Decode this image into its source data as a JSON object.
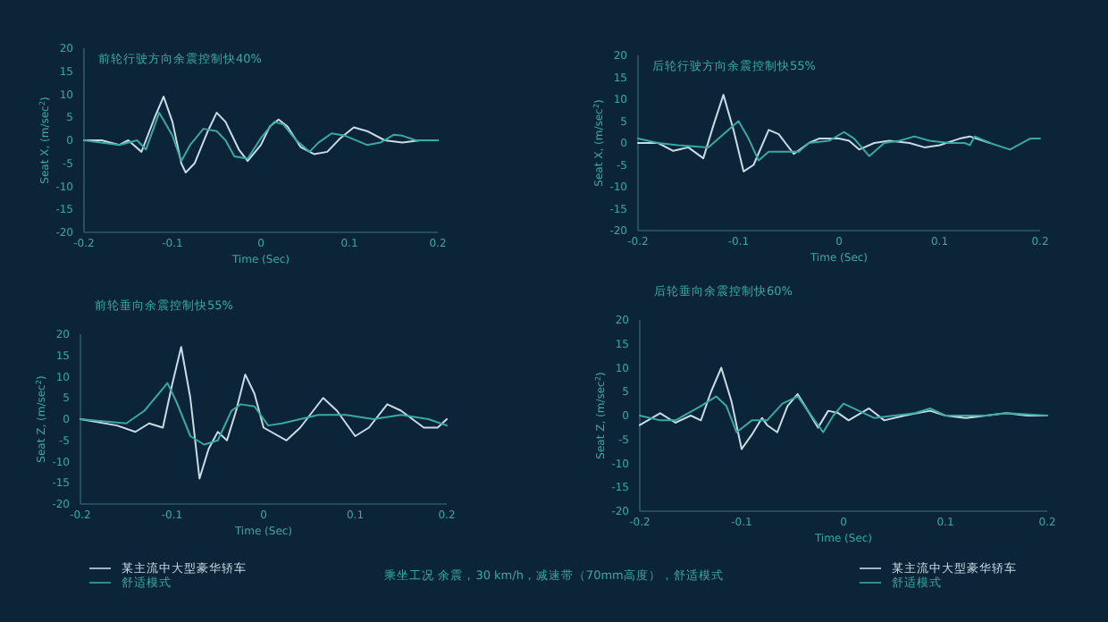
{
  "chart_data": [
    {
      "type": "line",
      "title": "前轮行驶方向余震控制快40%",
      "xlabel": "Time (Sec)",
      "ylabel": "Seat X, (m/sec$^{2}$)",
      "xlim": [
        -0.2,
        0.2
      ],
      "ylim": [
        -20,
        20
      ],
      "xticks": [
        -0.2,
        -0.1,
        0,
        0.1,
        0.2
      ],
      "yticks": [
        -20,
        -15,
        -10,
        -5,
        0,
        5,
        10,
        15,
        20
      ],
      "grid": false,
      "legend": false,
      "marker": "none",
      "line_style": "solid",
      "series": [
        {
          "color": "#c8dce6",
          "x": [
            -0.2,
            -0.18,
            -0.16,
            -0.15,
            -0.135,
            -0.12,
            -0.11,
            -0.1,
            -0.09,
            -0.085,
            -0.075,
            -0.06,
            -0.05,
            -0.04,
            -0.025,
            -0.015,
            0,
            0.01,
            0.02,
            0.03,
            0.045,
            0.06,
            0.075,
            0.09,
            0.105,
            0.12,
            0.14,
            0.16,
            0.18,
            0.2
          ],
          "values": [
            0,
            0,
            -1,
            0,
            -2.5,
            5,
            9.5,
            4,
            -5,
            -7,
            -5,
            2,
            6,
            4,
            -2,
            -4.5,
            -1,
            3,
            4.5,
            3,
            -1.5,
            -3,
            -2.5,
            0.5,
            2.8,
            2,
            0,
            -0.5,
            0,
            0
          ]
        },
        {
          "color": "#3aa9a0",
          "x": [
            -0.2,
            -0.16,
            -0.14,
            -0.13,
            -0.115,
            -0.1,
            -0.09,
            -0.08,
            -0.065,
            -0.05,
            -0.04,
            -0.03,
            -0.015,
            0,
            0.015,
            0.025,
            0.04,
            0.055,
            0.065,
            0.08,
            0.095,
            0.12,
            0.135,
            0.15,
            0.16,
            0.175,
            0.2
          ],
          "values": [
            0,
            -1,
            0,
            -2,
            6,
            1,
            -4.5,
            -1,
            2.5,
            2,
            0,
            -3.5,
            -4,
            0.5,
            4,
            3.5,
            0,
            -2.5,
            -0.5,
            1.5,
            1,
            -1,
            -0.5,
            1.2,
            1,
            0,
            0
          ]
        }
      ]
    },
    {
      "type": "line",
      "title": "后轮行驶方向余震控制快55%",
      "xlabel": "Time (Sec)",
      "ylabel": "Seat X, (m/sec$^{2}$)",
      "xlim": [
        -0.2,
        0.2
      ],
      "ylim": [
        -20,
        20
      ],
      "xticks": [
        -0.2,
        -0.1,
        0,
        0.1,
        0.2
      ],
      "yticks": [
        -20,
        -15,
        -10,
        -5,
        0,
        5,
        10,
        15,
        20
      ],
      "grid": false,
      "legend": false,
      "marker": "none",
      "line_style": "solid",
      "series": [
        {
          "color": "#c8dce6",
          "x": [
            -0.2,
            -0.18,
            -0.165,
            -0.15,
            -0.135,
            -0.125,
            -0.115,
            -0.105,
            -0.095,
            -0.085,
            -0.07,
            -0.06,
            -0.045,
            -0.03,
            -0.02,
            0,
            0.01,
            0.02,
            0.035,
            0.05,
            0.07,
            0.085,
            0.1,
            0.12,
            0.13,
            0.15
          ],
          "values": [
            0,
            0,
            -1.8,
            -1,
            -3.5,
            4,
            11,
            3,
            -6.5,
            -5,
            3,
            2,
            -2.5,
            0,
            1,
            1,
            0.5,
            -1.5,
            0,
            0.5,
            0,
            -1,
            -0.5,
            1,
            1.5,
            0
          ]
        },
        {
          "color": "#3aa9a0",
          "x": [
            -0.2,
            -0.18,
            -0.16,
            -0.13,
            -0.115,
            -0.1,
            -0.09,
            -0.08,
            -0.07,
            -0.04,
            -0.03,
            -0.01,
            0.005,
            0.015,
            0.03,
            0.045,
            0.06,
            0.075,
            0.09,
            0.11,
            0.125,
            0.13,
            0.135,
            0.15,
            0.17,
            0.19,
            0.2
          ],
          "values": [
            1,
            0,
            -0.5,
            -1,
            2,
            5,
            1,
            -4,
            -2,
            -2,
            0,
            0.5,
            2.5,
            1,
            -3,
            0,
            0.5,
            1.5,
            0.5,
            0,
            0,
            -0.5,
            1.5,
            0,
            -1.5,
            1,
            1
          ]
        }
      ]
    },
    {
      "type": "line",
      "title": "前轮垂向余震控制快55%",
      "xlabel": "Time (Sec)",
      "ylabel": "Seat Z, (m/sec$^{2}$)",
      "xlim": [
        -0.2,
        0.2
      ],
      "ylim": [
        -20,
        20
      ],
      "xticks": [
        -0.2,
        -0.1,
        0,
        0.1,
        0.2
      ],
      "yticks": [
        -20,
        -15,
        -10,
        -5,
        0,
        5,
        10,
        15,
        20
      ],
      "grid": false,
      "legend": "bottom left",
      "marker": "none",
      "line_style": "solid",
      "annotations": [
        "乘坐工况  余震，30 km/h，减速带（70mm高度），舒适模式"
      ],
      "series": [
        {
          "name": "某主流中大型豪华轿车",
          "color": "#c8dce6",
          "x": [
            -0.2,
            -0.16,
            -0.14,
            -0.125,
            -0.11,
            -0.1,
            -0.09,
            -0.08,
            -0.07,
            -0.06,
            -0.05,
            -0.04,
            -0.03,
            -0.02,
            -0.01,
            0,
            0.025,
            0.04,
            0.065,
            0.08,
            0.1,
            0.115,
            0.135,
            0.15,
            0.175,
            0.19,
            0.2
          ],
          "values": [
            0,
            -1.5,
            -3,
            -1,
            -2,
            8,
            17,
            5,
            -14,
            -7,
            -3,
            -5,
            2,
            10.5,
            6,
            -2,
            -5,
            -2,
            5,
            2,
            -4,
            -2,
            3.5,
            2,
            -2,
            -2,
            0
          ]
        },
        {
          "name": "舒适模式",
          "color": "#3aa9a0",
          "x": [
            -0.2,
            -0.15,
            -0.13,
            -0.105,
            -0.095,
            -0.08,
            -0.065,
            -0.05,
            -0.035,
            -0.025,
            -0.01,
            0.005,
            0.02,
            0.04,
            0.06,
            0.09,
            0.12,
            0.15,
            0.18,
            0.2
          ],
          "values": [
            0,
            -1,
            2,
            8.5,
            4,
            -4,
            -6,
            -5,
            2,
            3.5,
            3,
            -1.5,
            -1,
            0,
            1,
            1,
            0,
            1,
            0,
            -1.5
          ]
        }
      ]
    },
    {
      "type": "line",
      "title": "后轮垂向余震控制快60%",
      "xlabel": "Time (Sec)",
      "ylabel": "Seat Z, (m/sec$^{2}$)",
      "xlim": [
        -0.2,
        0.2
      ],
      "ylim": [
        -20,
        20
      ],
      "xticks": [
        -0.2,
        -0.1,
        0,
        0.1,
        0.2
      ],
      "yticks": [
        -20,
        -15,
        -10,
        -5,
        0,
        5,
        10,
        15,
        20
      ],
      "grid": false,
      "legend": "bottom right",
      "marker": "none",
      "line_style": "solid",
      "series": [
        {
          "name": "某主流中大型豪华轿车",
          "color": "#c8dce6",
          "x": [
            -0.2,
            -0.18,
            -0.165,
            -0.15,
            -0.14,
            -0.13,
            -0.12,
            -0.11,
            -0.1,
            -0.09,
            -0.08,
            -0.075,
            -0.065,
            -0.055,
            -0.045,
            -0.035,
            -0.025,
            -0.015,
            -0.005,
            0.005,
            0.025,
            0.04,
            0.06,
            0.085,
            0.1,
            0.12,
            0.14,
            0.16,
            0.18,
            0.2
          ],
          "values": [
            -2,
            0.5,
            -1.5,
            0,
            -1,
            5,
            10,
            3,
            -7,
            -4,
            -0.5,
            -2,
            -3.5,
            2,
            4.5,
            1,
            -2.5,
            1,
            0.5,
            -1,
            1.5,
            -1,
            0,
            1,
            0,
            -0.5,
            0,
            0.5,
            0,
            0
          ]
        },
        {
          "name": "舒适模式",
          "color": "#3aa9a0",
          "x": [
            -0.2,
            -0.18,
            -0.165,
            -0.14,
            -0.125,
            -0.115,
            -0.105,
            -0.09,
            -0.075,
            -0.06,
            -0.045,
            -0.035,
            -0.02,
            -0.01,
            0,
            0.015,
            0.03,
            0.05,
            0.07,
            0.085,
            0.1,
            0.14,
            0.16,
            0.2
          ],
          "values": [
            0,
            -1,
            -1,
            2,
            4,
            2,
            -3.5,
            -1,
            -1,
            2.5,
            4,
            1,
            -3.5,
            0,
            2.5,
            1,
            -0.5,
            0,
            0.5,
            1.5,
            0,
            0,
            0.5,
            0
          ]
        }
      ]
    }
  ]
}
